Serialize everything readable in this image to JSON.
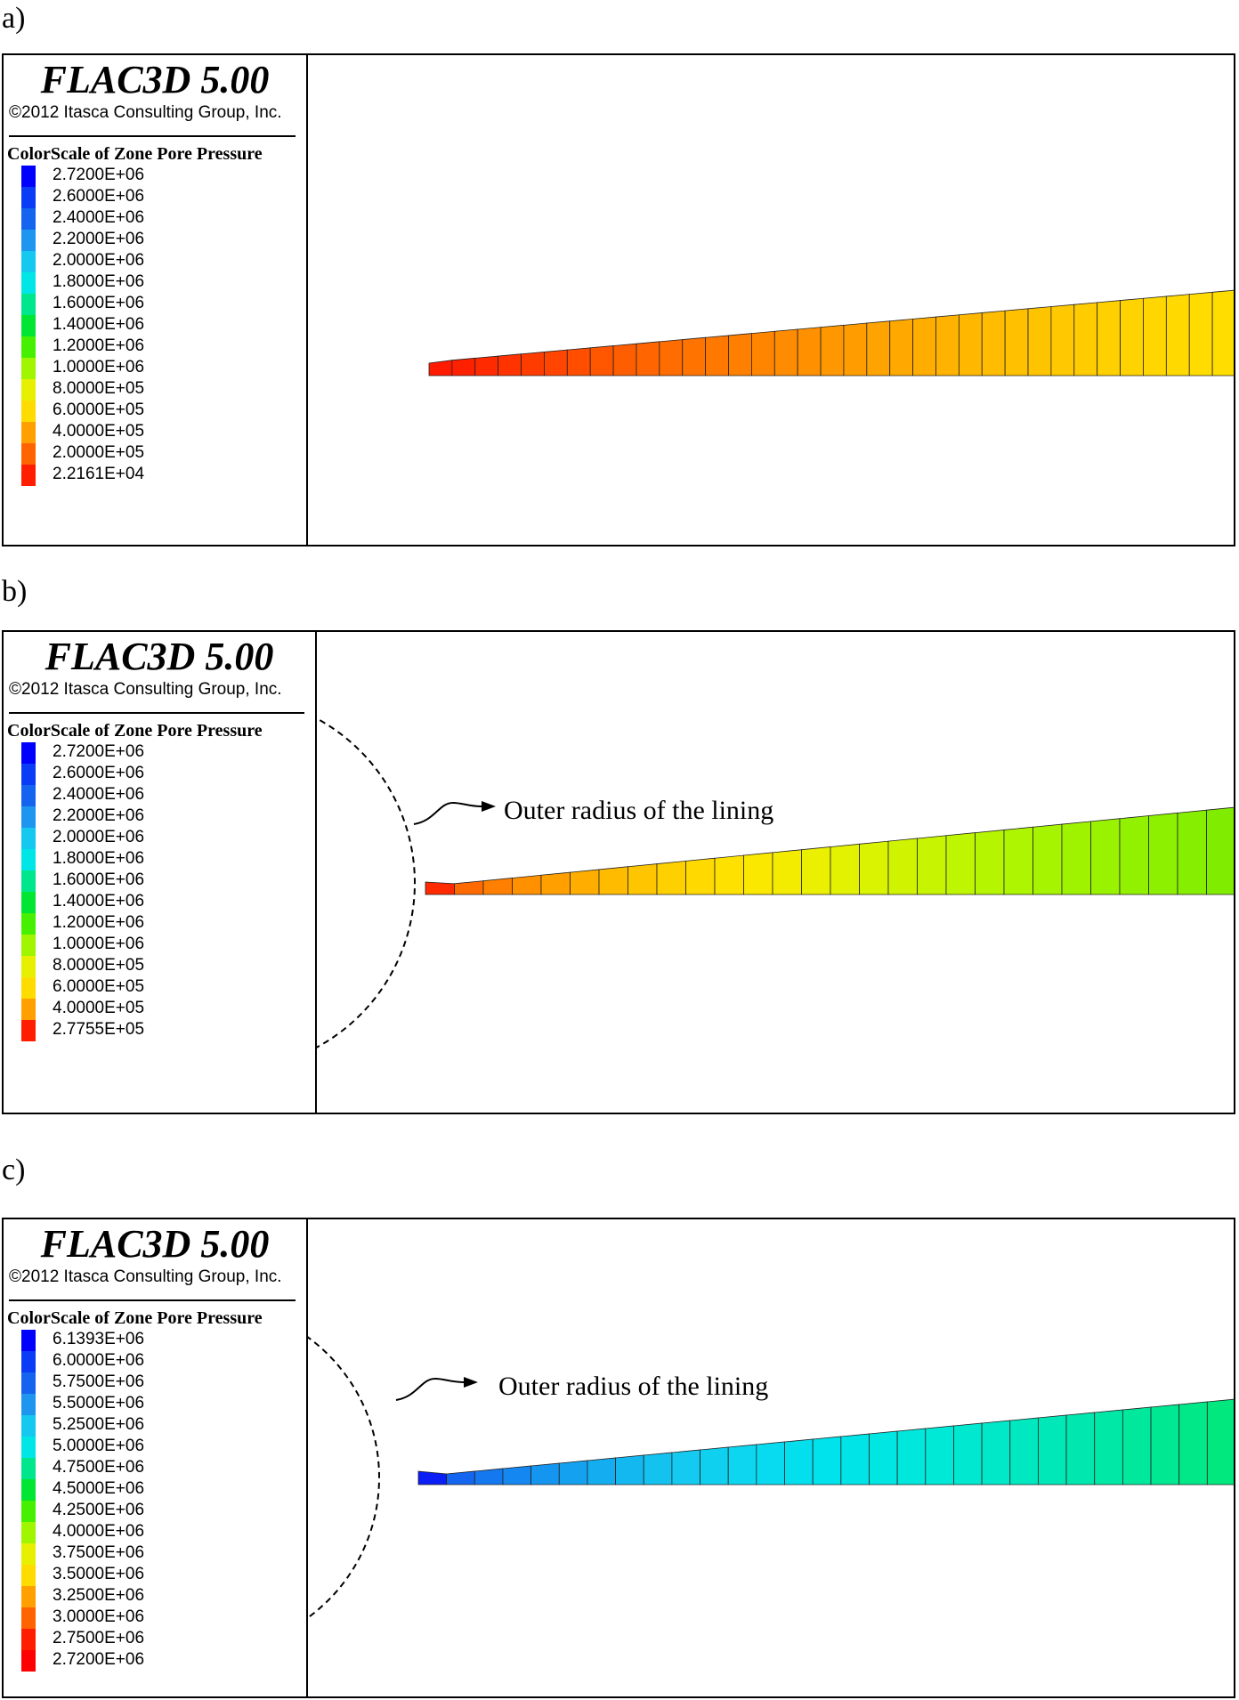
{
  "panels": [
    {
      "label": "a)",
      "app_title": "FLAC3D 5.00",
      "copyright": "©2012 Itasca Consulting Group, Inc.",
      "scale_title": "ColorScale of Zone Pore Pressure",
      "ticks": [
        "2.7200E+06",
        "2.6000E+06",
        "2.4000E+06",
        "2.2000E+06",
        "2.0000E+06",
        "1.8000E+06",
        "1.6000E+06",
        "1.4000E+06",
        "1.2000E+06",
        "1.0000E+06",
        "8.0000E+05",
        "6.0000E+05",
        "4.0000E+05",
        "2.0000E+05",
        "2.2161E+04"
      ],
      "swatch_colors": [
        "#0000ff",
        "#0a3cf5",
        "#1464f0",
        "#1e96f0",
        "#14c8f0",
        "#00e6e6",
        "#00e68c",
        "#00e632",
        "#46f000",
        "#a0f500",
        "#e6f000",
        "#ffdc00",
        "#ffa000",
        "#ff6400",
        "#ff1e00"
      ],
      "annotation": "",
      "show_circle": false,
      "wedge_colors": [
        "#ff1a00",
        "#ff2000",
        "#ff2a00",
        "#ff3300",
        "#ff3c00",
        "#ff4500",
        "#ff4e00",
        "#ff5600",
        "#ff5e00",
        "#ff6500",
        "#ff6c00",
        "#ff7300",
        "#ff7900",
        "#ff7f00",
        "#ff8500",
        "#ff8b00",
        "#ff9100",
        "#ff9700",
        "#ff9d00",
        "#ffa300",
        "#ffa800",
        "#ffad00",
        "#ffb200",
        "#ffb700",
        "#ffbc00",
        "#ffc000",
        "#ffc400",
        "#ffc800",
        "#ffcc00",
        "#ffd000",
        "#ffd300",
        "#ffd600",
        "#ffd900",
        "#ffdb00",
        "#ffdd00"
      ]
    },
    {
      "label": "b)",
      "app_title": "FLAC3D 5.00",
      "copyright": "©2012 Itasca Consulting Group, Inc.",
      "scale_title": "ColorScale of Zone Pore Pressure",
      "ticks": [
        "2.7200E+06",
        "2.6000E+06",
        "2.4000E+06",
        "2.2000E+06",
        "2.0000E+06",
        "1.8000E+06",
        "1.6000E+06",
        "1.4000E+06",
        "1.2000E+06",
        "1.0000E+06",
        "8.0000E+05",
        "6.0000E+05",
        "4.0000E+05",
        "2.7755E+05"
      ],
      "swatch_colors": [
        "#0000ff",
        "#0a3cf5",
        "#1464f0",
        "#1e96f0",
        "#14c8f0",
        "#00e6e6",
        "#00e68c",
        "#00e632",
        "#46f000",
        "#a0f500",
        "#e6f000",
        "#ffdc00",
        "#ffa000",
        "#ff1e00"
      ],
      "annotation": "Outer radius of the lining",
      "show_circle": true,
      "wedge_colors": [
        "#ff2a00",
        "#ff6a00",
        "#ff8000",
        "#ff9000",
        "#ffa000",
        "#ffae00",
        "#ffbb00",
        "#ffc600",
        "#ffd000",
        "#ffd900",
        "#ffe100",
        "#fbe800",
        "#f4ec00",
        "#ebef00",
        "#e2f200",
        "#d9f300",
        "#d0f400",
        "#c7f400",
        "#bef500",
        "#b5f500",
        "#adf500",
        "#a6f400",
        "#9ff300",
        "#98f200",
        "#92f100",
        "#8cf000",
        "#86ee00",
        "#80ec00"
      ]
    },
    {
      "label": "c)",
      "app_title": "FLAC3D 5.00",
      "copyright": "©2012 Itasca Consulting Group, Inc.",
      "scale_title": "ColorScale of Zone Pore Pressure",
      "ticks": [
        "6.1393E+06",
        "6.0000E+06",
        "5.7500E+06",
        "5.5000E+06",
        "5.2500E+06",
        "5.0000E+06",
        "4.7500E+06",
        "4.5000E+06",
        "4.2500E+06",
        "4.0000E+06",
        "3.7500E+06",
        "3.5000E+06",
        "3.2500E+06",
        "3.0000E+06",
        "2.7500E+06",
        "2.7200E+06"
      ],
      "swatch_colors": [
        "#0000ff",
        "#0a3cf5",
        "#1464f0",
        "#1e96f0",
        "#14c8f0",
        "#00e6e6",
        "#00e68c",
        "#00e632",
        "#46f000",
        "#a0f500",
        "#e6f000",
        "#ffdc00",
        "#ffa000",
        "#ff6400",
        "#ff1e00",
        "#ff0000"
      ],
      "annotation": "Outer radius of the lining",
      "show_circle": true,
      "wedge_colors": [
        "#0a1ef5",
        "#1466f0",
        "#1478f0",
        "#1488f0",
        "#1496f0",
        "#14a2f0",
        "#14aef0",
        "#14b8f0",
        "#14c2f0",
        "#14caf0",
        "#10d0f0",
        "#0cd6f0",
        "#08dbf0",
        "#04dfee",
        "#00e2ec",
        "#00e4e8",
        "#00e6e2",
        "#00e7dc",
        "#00e8d6",
        "#00e8cf",
        "#00e8c8",
        "#00e8c0",
        "#00e8b8",
        "#00e8af",
        "#00e8a6",
        "#00e89c",
        "#00e892",
        "#00e888",
        "#00e87e"
      ]
    }
  ]
}
